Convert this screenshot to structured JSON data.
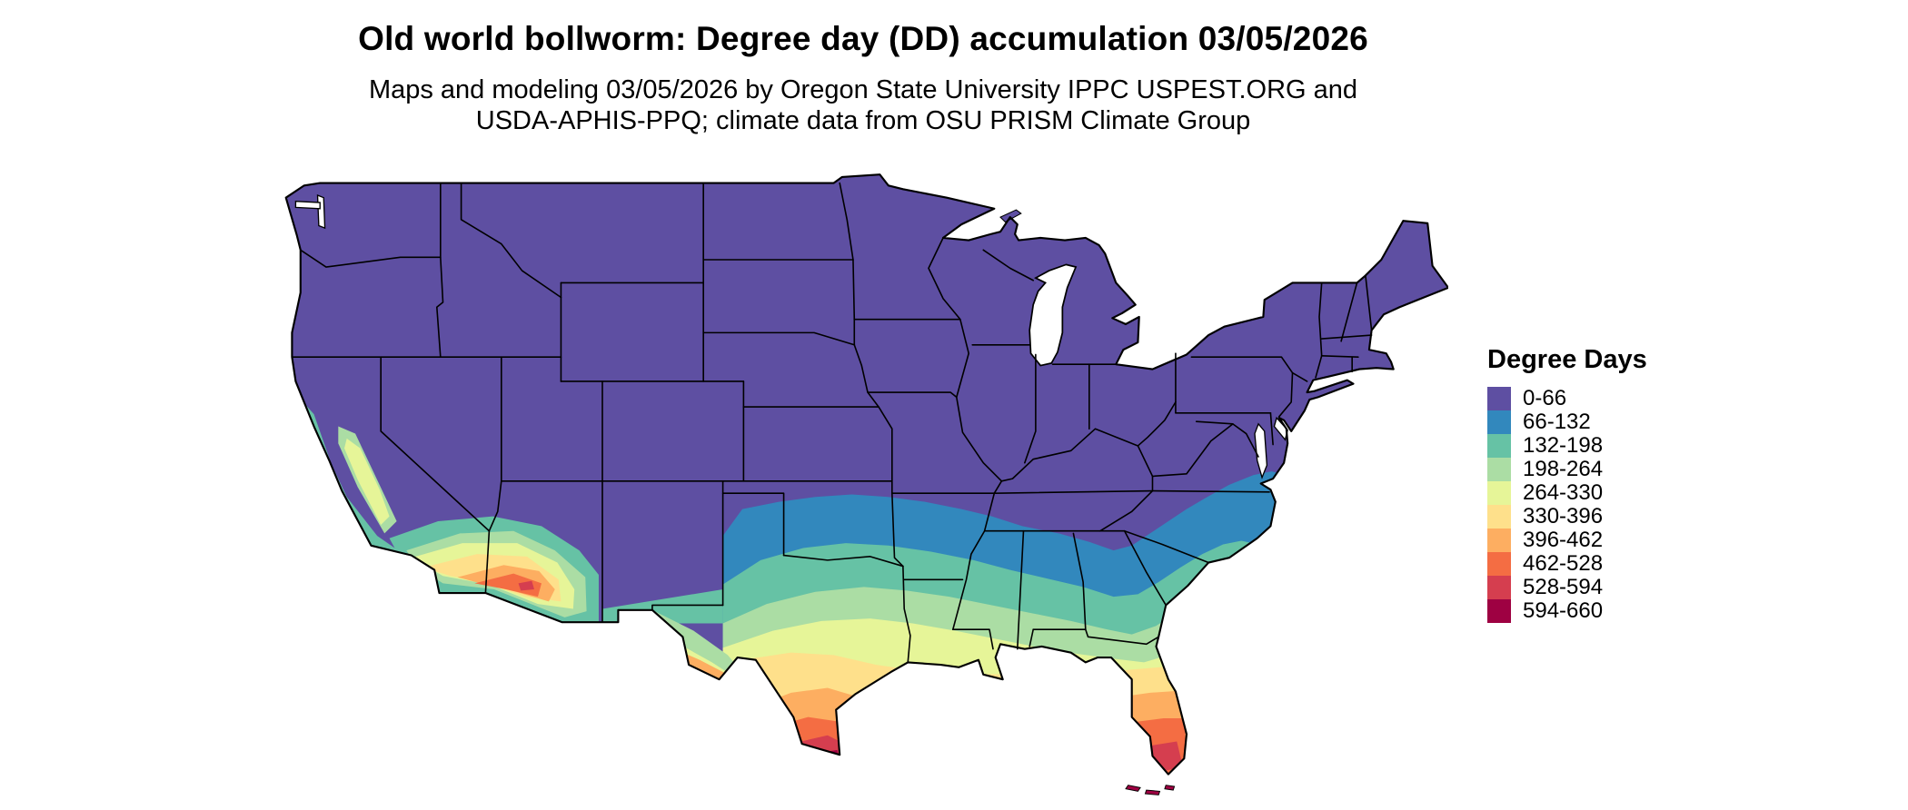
{
  "header": {
    "title": "Old world bollworm: Degree day (DD) accumulation 03/05/2026",
    "subtitle_line1": "Maps and modeling 03/05/2026 by Oregon State University IPPC USPEST.ORG and",
    "subtitle_line2": "USDA-APHIS-PPQ; climate data from OSU PRISM Climate Group"
  },
  "legend": {
    "title": "Degree Days",
    "items": [
      {
        "label": "0-66",
        "color": "#5e4fa2"
      },
      {
        "label": "66-132",
        "color": "#3288bd"
      },
      {
        "label": "132-198",
        "color": "#66c2a5"
      },
      {
        "label": "198-264",
        "color": "#abdda4"
      },
      {
        "label": "264-330",
        "color": "#e6f598"
      },
      {
        "label": "330-396",
        "color": "#fee08b"
      },
      {
        "label": "396-462",
        "color": "#fdae61"
      },
      {
        "label": "462-528",
        "color": "#f46d43"
      },
      {
        "label": "528-594",
        "color": "#d53e4f"
      },
      {
        "label": "594-660",
        "color": "#9e0142"
      }
    ]
  },
  "palette": {
    "dd0": "#5e4fa2",
    "dd1": "#3288bd",
    "dd2": "#66c2a5",
    "dd3": "#abdda4",
    "dd4": "#e6f598",
    "dd5": "#fee08b",
    "dd6": "#fdae61",
    "dd7": "#f46d43",
    "dd8": "#d53e4f",
    "dd9": "#9e0142",
    "border": "#000000",
    "water": "#ffffff"
  },
  "chart_data": {
    "type": "heatmap",
    "subtype": "choropleth-degree-day-map",
    "title": "Old world bollworm: Degree day (DD) accumulation 03/05/2026",
    "legend_title": "Degree Days",
    "legend_position": "right",
    "bins": [
      {
        "min": 0,
        "max": 66,
        "color": "#5e4fa2"
      },
      {
        "min": 66,
        "max": 132,
        "color": "#3288bd"
      },
      {
        "min": 132,
        "max": 198,
        "color": "#66c2a5"
      },
      {
        "min": 198,
        "max": 264,
        "color": "#abdda4"
      },
      {
        "min": 264,
        "max": 330,
        "color": "#e6f598"
      },
      {
        "min": 330,
        "max": 396,
        "color": "#fee08b"
      },
      {
        "min": 396,
        "max": 462,
        "color": "#fdae61"
      },
      {
        "min": 462,
        "max": 528,
        "color": "#f46d43"
      },
      {
        "min": 528,
        "max": 594,
        "color": "#d53e4f"
      },
      {
        "min": 594,
        "max": 660,
        "color": "#9e0142"
      }
    ],
    "spatial_pattern": "Northern and mountain states 0-66 DD; band of 66-132 across northern Texas, Oklahoma border region, mid-South and coastal Carolinas; 132-264 across central Texas and the Gulf states; 264-396 along the Gulf coast, southern Texas and northern Florida; 396-528 in south Texas, low deserts of Arizona/southern California and central Florida; 528-660 at the southern tip of Texas, south Florida and the Florida Keys"
  }
}
